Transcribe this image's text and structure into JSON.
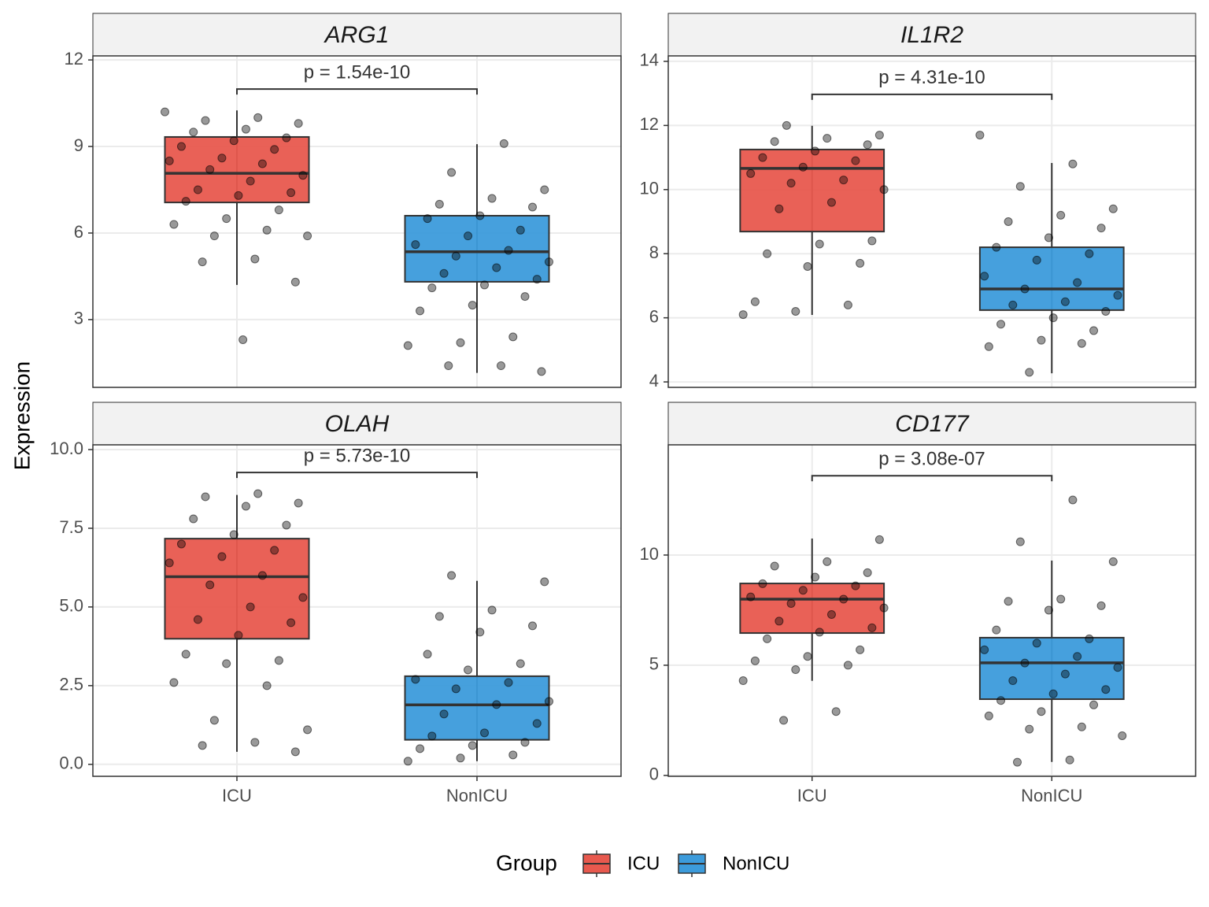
{
  "y_label": "Expression",
  "legend_title": "Group",
  "categories": [
    "ICU",
    "NonICU"
  ],
  "colors": [
    "#E8594E",
    "#3C9BDB"
  ],
  "chart_data": [
    {
      "type": "boxplot",
      "title": "ARG1",
      "annotation": "p = 1.54e-10",
      "bracket_y": 10.99,
      "ylim": [
        0.65,
        12.14
      ],
      "yticks": [
        3,
        6,
        9,
        12
      ],
      "boxes": [
        {
          "min": 4.2,
          "q1": 7.06,
          "median": 8.07,
          "q3": 9.33,
          "max": 10.25
        },
        {
          "min": 1.15,
          "q1": 4.31,
          "median": 5.35,
          "q3": 6.6,
          "max": 9.08
        }
      ],
      "points": [
        [
          10.2,
          10.0,
          9.9,
          9.8,
          9.6,
          9.5,
          9.3,
          9.2,
          9.0,
          8.9,
          8.6,
          8.5,
          8.4,
          8.2,
          8.0,
          7.8,
          7.5,
          7.4,
          7.3,
          7.1,
          6.8,
          6.5,
          6.3,
          6.1,
          5.9,
          5.9,
          5.1,
          5.0,
          4.3,
          2.3
        ],
        [
          9.1,
          8.1,
          7.5,
          7.2,
          7.0,
          6.9,
          6.6,
          6.5,
          6.1,
          5.9,
          5.6,
          5.4,
          5.2,
          5.0,
          4.8,
          4.6,
          4.4,
          4.2,
          4.1,
          3.8,
          3.5,
          3.3,
          2.4,
          2.2,
          2.1,
          1.4,
          1.4,
          1.2
        ]
      ]
    },
    {
      "type": "boxplot",
      "title": "IL1R2",
      "annotation": "p = 4.31e-10",
      "bracket_y": 12.97,
      "ylim": [
        3.83,
        14.17
      ],
      "yticks": [
        4,
        6,
        8,
        10,
        12,
        14
      ],
      "boxes": [
        {
          "min": 6.09,
          "q1": 8.69,
          "median": 10.66,
          "q3": 11.25,
          "max": 11.99
        },
        {
          "min": 4.27,
          "q1": 6.24,
          "median": 6.9,
          "q3": 8.2,
          "max": 10.83
        }
      ],
      "points": [
        [
          12.0,
          11.7,
          11.6,
          11.5,
          11.4,
          11.2,
          11.0,
          10.9,
          10.7,
          10.5,
          10.3,
          10.2,
          10.0,
          9.6,
          9.4,
          8.4,
          8.3,
          8.0,
          7.7,
          7.6,
          6.5,
          6.4,
          6.2,
          6.1
        ],
        [
          11.7,
          10.8,
          10.1,
          9.4,
          9.2,
          9.0,
          8.8,
          8.5,
          8.2,
          8.0,
          7.8,
          7.3,
          7.1,
          6.9,
          6.7,
          6.5,
          6.4,
          6.2,
          6.0,
          5.8,
          5.6,
          5.3,
          5.1,
          5.2,
          4.3
        ]
      ]
    },
    {
      "type": "boxplot",
      "title": "OLAH",
      "annotation": "p = 5.73e-10",
      "bracket_y": 9.27,
      "ylim": [
        -0.38,
        10.15
      ],
      "yticks": [
        {
          "value": 0,
          "label": "0.0"
        },
        2.5,
        {
          "value": 5,
          "label": "5.0"
        },
        7.5,
        {
          "value": 10,
          "label": "10.0"
        }
      ],
      "boxes": [
        {
          "min": 0.4,
          "q1": 3.99,
          "median": 5.96,
          "q3": 7.17,
          "max": 8.56
        },
        {
          "min": 0.1,
          "q1": 0.78,
          "median": 1.89,
          "q3": 2.8,
          "max": 5.83
        }
      ],
      "points": [
        [
          8.6,
          8.5,
          8.3,
          8.2,
          7.8,
          7.6,
          7.3,
          7.0,
          6.8,
          6.6,
          6.4,
          6.0,
          5.7,
          5.3,
          5.0,
          4.6,
          4.5,
          4.1,
          3.5,
          3.3,
          3.2,
          2.6,
          2.5,
          1.4,
          1.1,
          0.7,
          0.6,
          0.4
        ],
        [
          6.0,
          5.8,
          4.9,
          4.7,
          4.4,
          4.2,
          3.5,
          3.2,
          3.0,
          2.7,
          2.6,
          2.4,
          2.0,
          1.9,
          1.6,
          1.3,
          1.0,
          0.9,
          0.7,
          0.6,
          0.5,
          0.3,
          0.2,
          0.1
        ]
      ]
    },
    {
      "type": "boxplot",
      "title": "CD177",
      "annotation": "p = 3.08e-07",
      "bracket_y": 13.6,
      "ylim": [
        -0.04,
        15.0
      ],
      "yticks": [
        0,
        5,
        10
      ],
      "boxes": [
        {
          "min": 4.29,
          "q1": 6.46,
          "median": 8.0,
          "q3": 8.71,
          "max": 10.75
        },
        {
          "min": 0.61,
          "q1": 3.46,
          "median": 5.11,
          "q3": 6.25,
          "max": 9.75
        }
      ],
      "points": [
        [
          10.7,
          9.7,
          9.5,
          9.2,
          9.0,
          8.7,
          8.6,
          8.4,
          8.1,
          8.0,
          7.8,
          7.6,
          7.3,
          7.0,
          6.7,
          6.5,
          6.2,
          5.7,
          5.4,
          5.2,
          5.0,
          4.8,
          4.3,
          2.9,
          2.5
        ],
        [
          12.5,
          10.6,
          9.7,
          8.0,
          7.9,
          7.7,
          7.5,
          6.6,
          6.2,
          6.0,
          5.7,
          5.4,
          5.1,
          4.9,
          4.6,
          4.3,
          3.9,
          3.7,
          3.4,
          3.2,
          2.9,
          2.7,
          2.2,
          2.1,
          1.8,
          0.7,
          0.6
        ]
      ]
    }
  ]
}
